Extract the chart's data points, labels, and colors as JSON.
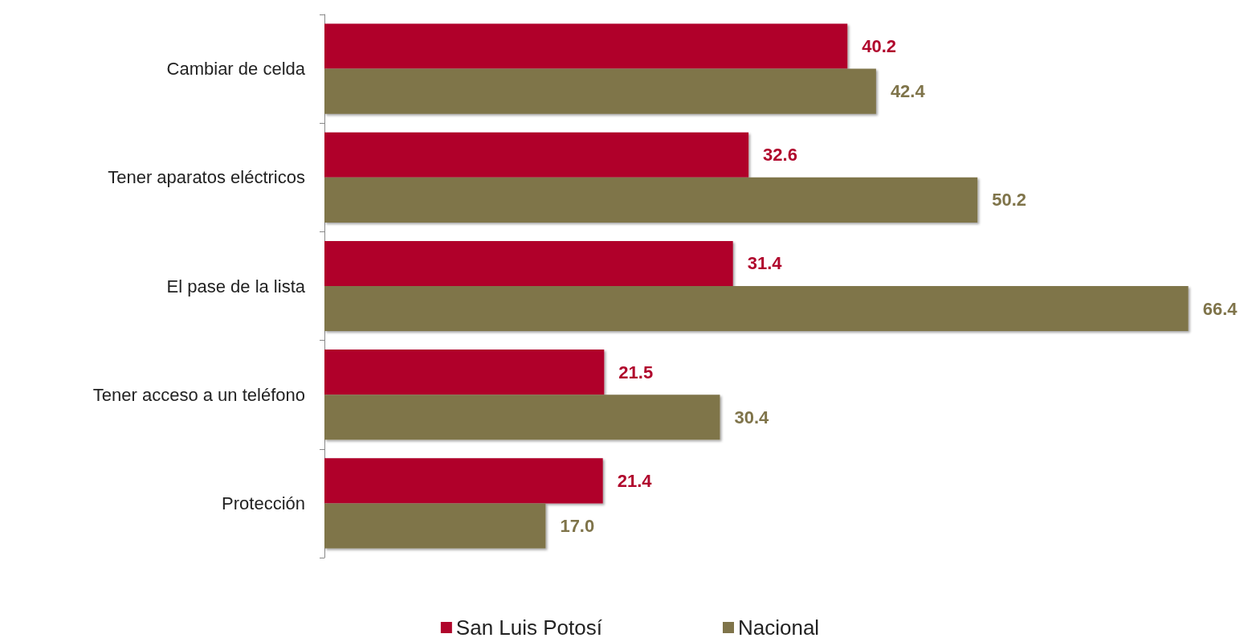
{
  "chart_data": {
    "type": "bar",
    "orientation": "horizontal",
    "categories": [
      "Cambiar de celda",
      "Tener aparatos eléctricos",
      "El pase de la lista",
      "Tener acceso a un teléfono",
      "Protección"
    ],
    "series": [
      {
        "name": "San Luis Potosí",
        "color": "#b0062c",
        "values": [
          40.2,
          32.6,
          31.4,
          21.5,
          21.4
        ],
        "value_labels": [
          "40.2",
          "32.6",
          "31.4",
          "21.5",
          "21.4"
        ]
      },
      {
        "name": "Nacional",
        "color": "#7f744a",
        "values": [
          42.4,
          50.2,
          66.4,
          30.4,
          17.0
        ],
        "value_labels": [
          "42.4",
          "50.2",
          "66.4",
          "30.4",
          "17.0"
        ]
      }
    ],
    "legend": "bottom",
    "grid": false
  }
}
